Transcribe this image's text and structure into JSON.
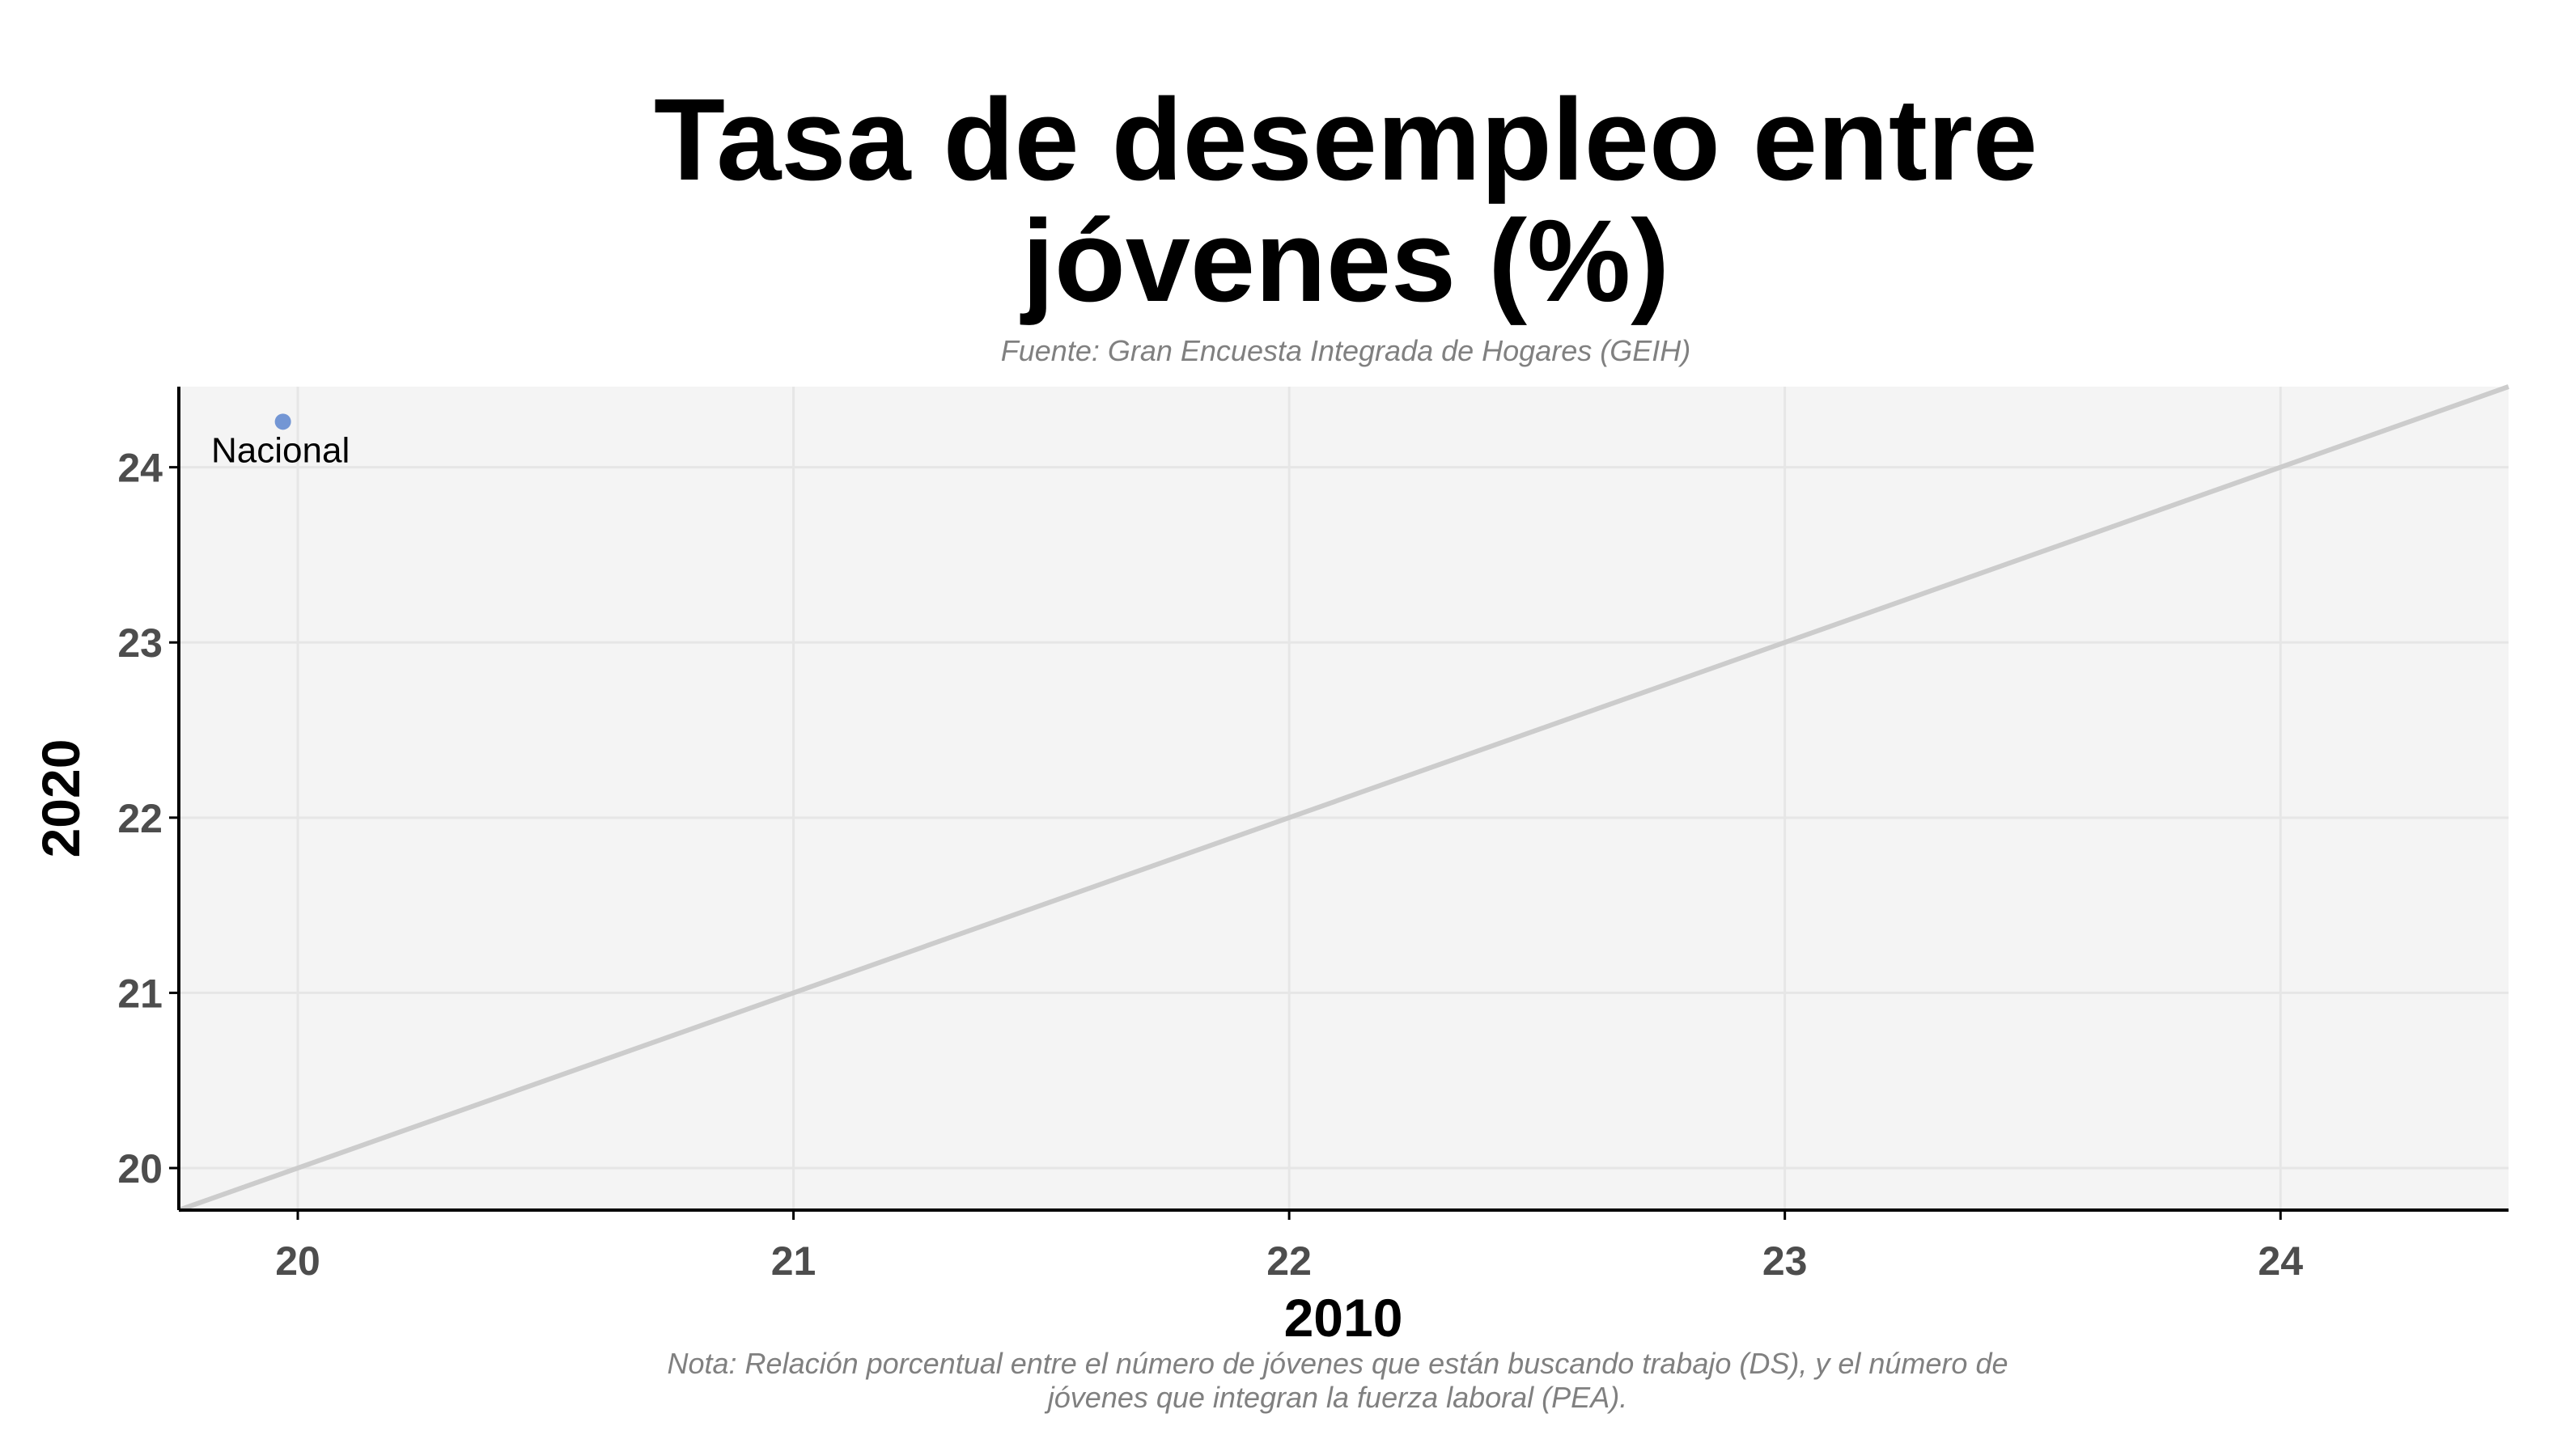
{
  "chart_data": {
    "type": "scatter",
    "title_lines": [
      "Tasa de desempleo entre",
      "jóvenes (%)"
    ],
    "subtitle": "Fuente: Gran Encuesta Integrada de Hogares (GEIH)",
    "caption_lines": [
      "Nota: Relación porcentual entre el número de jóvenes que están buscando trabajo (DS), y el número de",
      "jóvenes que integran la fuerza laboral (PEA)."
    ],
    "xlabel": "2010",
    "ylabel": "2020",
    "xlim": [
      19.76,
      24.46
    ],
    "ylim": [
      19.76,
      24.46
    ],
    "x_ticks": [
      20,
      21,
      22,
      23,
      24
    ],
    "y_ticks": [
      20,
      21,
      22,
      23,
      24
    ],
    "grid": true,
    "reference_line": "y = x",
    "points": [
      {
        "label": "Nacional",
        "x": 19.97,
        "y": 24.26
      }
    ],
    "colors": {
      "point": "#7396d4",
      "panel": "#f4f4f4",
      "grid": "#e6e6e6",
      "reference_line": "#cccccc",
      "axis": "#000000"
    }
  }
}
